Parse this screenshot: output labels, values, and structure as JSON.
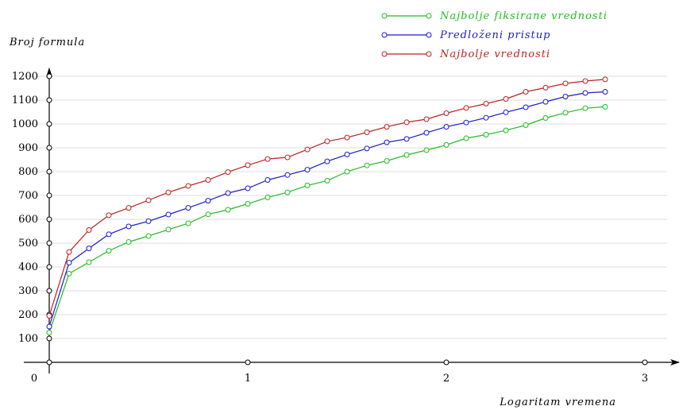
{
  "chart_data": {
    "type": "line",
    "title": "",
    "xlabel": "Logaritam vremena",
    "ylabel": "Broj formula",
    "xlim": [
      0,
      3.15
    ],
    "ylim": [
      0,
      1250
    ],
    "x_ticks": [
      "0",
      "1",
      "2",
      "3"
    ],
    "y_ticks": [
      "100",
      "200",
      "300",
      "400",
      "500",
      "600",
      "700",
      "800",
      "900",
      "1000",
      "1100",
      "1200"
    ],
    "grid": "horizontal",
    "legend_position": "top-right",
    "x": [
      0,
      0.1,
      0.2,
      0.3,
      0.4,
      0.5,
      0.6,
      0.7,
      0.8,
      0.9,
      1.0,
      1.1,
      1.2,
      1.3,
      1.4,
      1.5,
      1.6,
      1.7,
      1.8,
      1.9,
      2.0,
      2.1,
      2.2,
      2.3,
      2.4,
      2.5,
      2.6,
      2.7,
      2.8
    ],
    "series": [
      {
        "name": "Najbolje fiksirane vrednosti",
        "color": "#22bb22",
        "values": [
          125,
          372,
          420,
          468,
          505,
          530,
          557,
          583,
          621,
          640,
          665,
          692,
          713,
          742,
          762,
          800,
          826,
          845,
          870,
          890,
          912,
          940,
          955,
          973,
          995,
          1025,
          1047,
          1066,
          1072
        ]
      },
      {
        "name": "Predloženi pristup",
        "color": "#1a1acc",
        "values": [
          150,
          418,
          478,
          537,
          570,
          592,
          620,
          648,
          678,
          710,
          730,
          765,
          786,
          808,
          843,
          872,
          897,
          923,
          937,
          963,
          988,
          1006,
          1026,
          1049,
          1070,
          1093,
          1115,
          1130,
          1135
        ]
      },
      {
        "name": "Najbolje vrednosti",
        "color": "#bb2222",
        "values": [
          195,
          463,
          555,
          617,
          648,
          680,
          713,
          740,
          765,
          798,
          827,
          853,
          860,
          893,
          927,
          943,
          965,
          988,
          1007,
          1020,
          1045,
          1067,
          1085,
          1105,
          1135,
          1152,
          1170,
          1180,
          1187
        ]
      }
    ]
  }
}
